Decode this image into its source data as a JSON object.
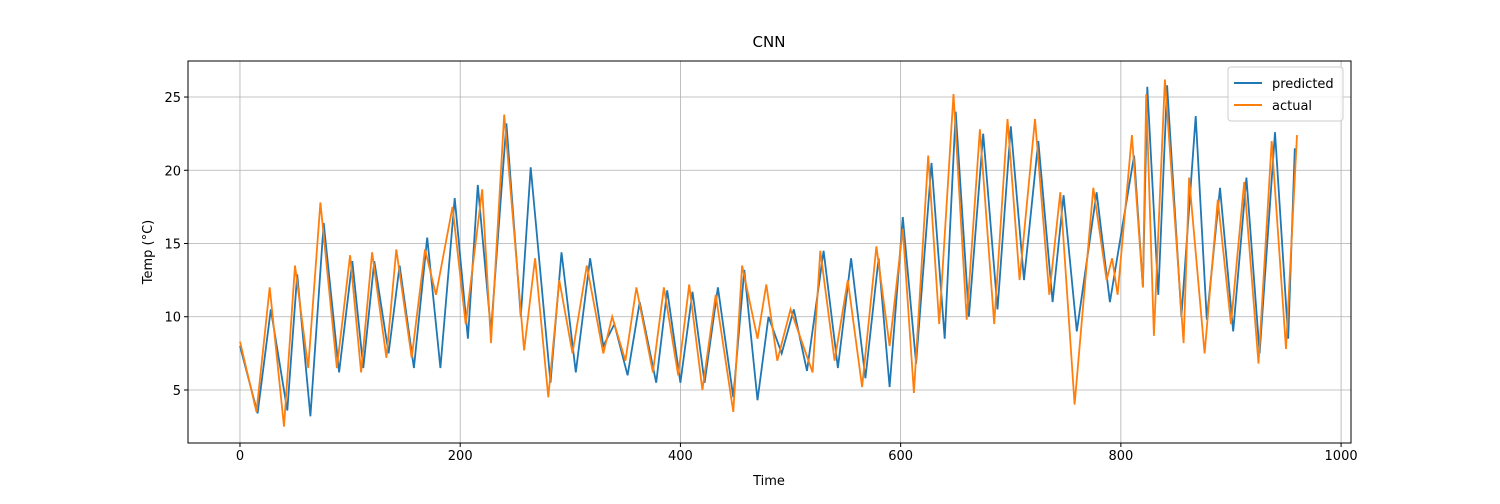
{
  "chart_data": {
    "type": "line",
    "title": "CNN",
    "xlabel": "Time",
    "ylabel": "Temp (°C)",
    "xlim": [
      -47.2,
      1009
    ],
    "ylim": [
      1.38,
      27.46
    ],
    "xticks": [
      0,
      200,
      400,
      600,
      800,
      1000
    ],
    "yticks": [
      5,
      10,
      15,
      20,
      25
    ],
    "grid": true,
    "legend": "upper right",
    "series": [
      {
        "name": "predicted",
        "color": "#1f77b4",
        "x": [
          0,
          16,
          28,
          43,
          52,
          64,
          76,
          90,
          102,
          112,
          122,
          135,
          145,
          158,
          170,
          182,
          195,
          207,
          216,
          228,
          242,
          255,
          264,
          282,
          292,
          305,
          318,
          330,
          340,
          352,
          363,
          378,
          388,
          400,
          411,
          422,
          434,
          448,
          458,
          470,
          480,
          492,
          503,
          515,
          530,
          543,
          555,
          568,
          580,
          590,
          602,
          614,
          628,
          640,
          650,
          662,
          675,
          688,
          700,
          712,
          725,
          738,
          748,
          760,
          778,
          790,
          812,
          820,
          824,
          834,
          842,
          855,
          868,
          878,
          890,
          902,
          914,
          926,
          940,
          952,
          958
        ],
        "values": [
          8,
          3.4,
          10.5,
          3.6,
          12.9,
          3.2,
          16.4,
          6.2,
          13.8,
          6.5,
          13.8,
          7.5,
          13.5,
          6.5,
          15.4,
          6.5,
          18.1,
          8.5,
          19,
          9,
          23.2,
          10,
          20.2,
          5.5,
          14.4,
          6.2,
          14,
          8,
          9.5,
          6,
          11,
          5.5,
          11.8,
          5.5,
          11.7,
          5.5,
          12,
          4.5,
          13.2,
          4.3,
          10,
          7.5,
          10.5,
          6.3,
          14.5,
          6.5,
          14,
          5.8,
          14,
          5.2,
          16.8,
          6.8,
          20.5,
          8.5,
          24,
          10,
          22.5,
          10.5,
          23,
          12.5,
          22,
          11,
          18.3,
          9,
          18.5,
          11,
          21,
          12,
          25.7,
          11.5,
          25.8,
          10,
          23.7,
          9.8,
          18.8,
          9,
          19.5,
          7.5,
          22.6,
          8.5,
          21.5
        ]
      },
      {
        "name": "actual",
        "color": "#ff7f0e",
        "x": [
          0,
          15,
          27,
          40,
          50,
          62,
          73,
          88,
          100,
          110,
          120,
          133,
          142,
          156,
          168,
          178,
          193,
          205,
          220,
          228,
          240,
          258,
          268,
          280,
          290,
          302,
          315,
          330,
          338,
          350,
          360,
          375,
          385,
          398,
          408,
          420,
          432,
          448,
          456,
          470,
          478,
          488,
          500,
          520,
          527,
          540,
          552,
          565,
          578,
          590,
          602,
          612,
          625,
          635,
          648,
          660,
          672,
          685,
          697,
          708,
          722,
          735,
          745,
          758,
          775,
          787,
          792,
          797,
          810,
          820,
          823,
          830,
          840,
          857,
          862,
          876,
          888,
          900,
          912,
          925,
          937,
          950,
          960
        ],
        "values": [
          8.3,
          3.5,
          12,
          2.5,
          13.5,
          6.5,
          17.8,
          6.5,
          14.2,
          6.2,
          14.4,
          7.2,
          14.6,
          7.2,
          14.6,
          11.5,
          17.5,
          9.5,
          18.7,
          8.2,
          23.8,
          7.7,
          14,
          4.5,
          12.5,
          7.5,
          13.5,
          7.5,
          10,
          7,
          12,
          6.2,
          12,
          6,
          12.2,
          5,
          11.5,
          3.5,
          13.5,
          8.5,
          12.2,
          7,
          10.5,
          6.2,
          14.5,
          7,
          12.5,
          5.2,
          14.8,
          8,
          16,
          4.8,
          21,
          9.5,
          25.2,
          9.8,
          22.8,
          9.5,
          23.5,
          12.5,
          23.5,
          11.5,
          18.5,
          4,
          18.8,
          12.5,
          14,
          11.5,
          22.4,
          12,
          25.2,
          8.7,
          26.2,
          8.2,
          19.5,
          7.5,
          18,
          9.5,
          19.2,
          6.8,
          22,
          7.8,
          22.4
        ]
      }
    ]
  }
}
